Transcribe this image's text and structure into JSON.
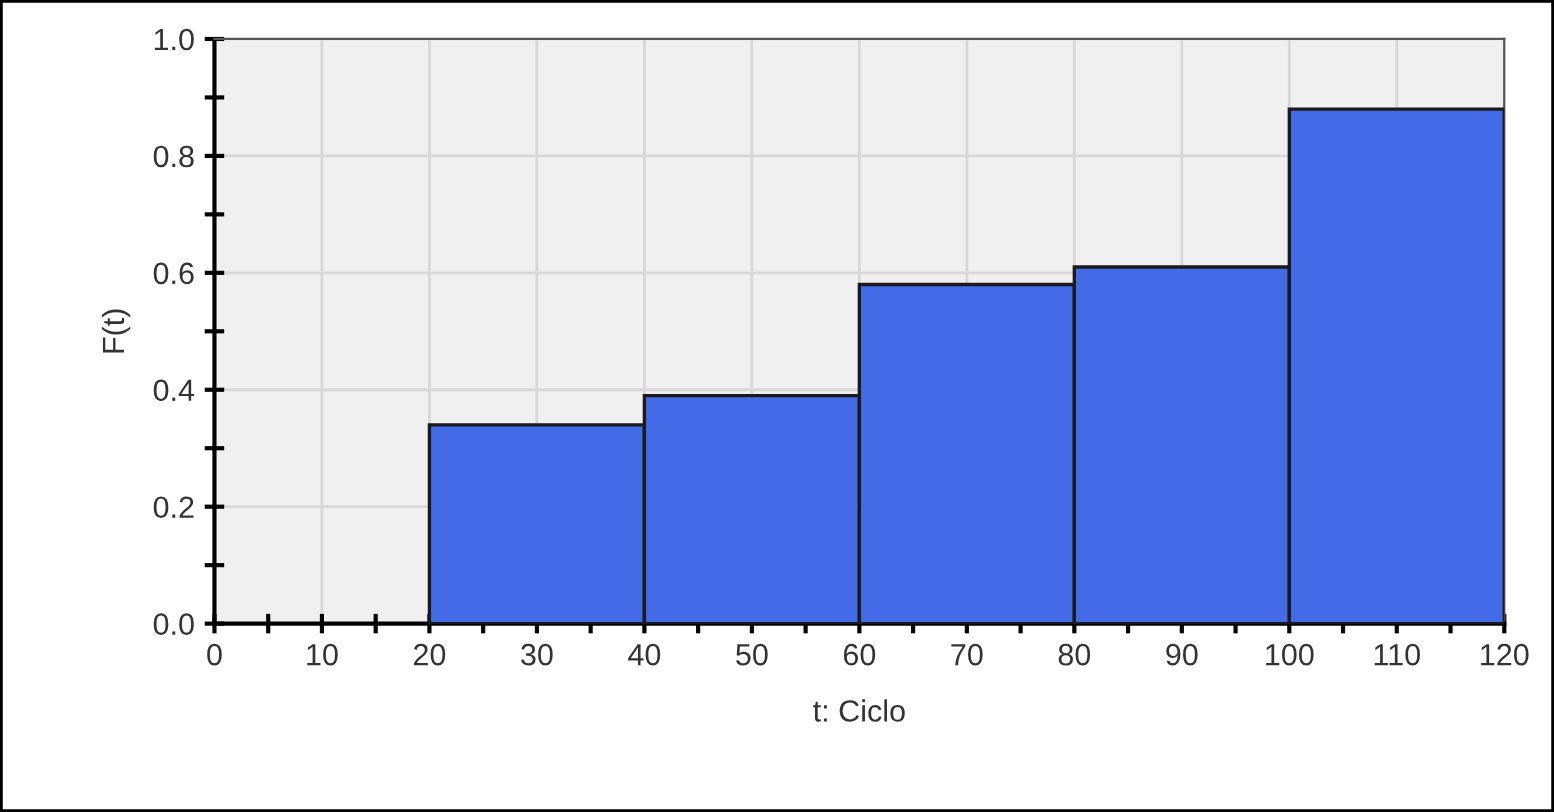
{
  "chart_data": {
    "type": "histogram",
    "xlabel": "t: Ciclo",
    "ylabel": "F(t)",
    "bins": [
      20,
      40,
      60,
      80,
      100,
      120
    ],
    "values": [
      0.34,
      0.39,
      0.58,
      0.61,
      0.88
    ],
    "color": "#436be8",
    "xlim": [
      0,
      120
    ],
    "xticks": [
      0,
      {
        "value": 5,
        "label": null
      },
      10,
      {
        "value": 15,
        "label": null
      },
      20,
      {
        "value": 25,
        "label": null
      },
      30,
      {
        "value": 35,
        "label": null
      },
      40,
      {
        "value": 45,
        "label": null
      },
      50,
      {
        "value": 55,
        "label": null
      },
      60,
      {
        "value": 65,
        "label": null
      },
      70,
      {
        "value": 75,
        "label": null
      },
      80,
      {
        "value": 85,
        "label": null
      },
      90,
      {
        "value": 95,
        "label": null
      },
      100,
      {
        "value": 105,
        "label": null
      },
      110,
      {
        "value": 115,
        "label": null
      },
      120
    ],
    "ylim": [
      0,
      1.0
    ],
    "yticks": [
      {
        "value": 0,
        "label": "0.0"
      },
      {
        "value": 0.1,
        "label": null
      },
      0.2,
      {
        "value": 0.3,
        "label": null
      },
      0.4,
      {
        "value": 0.5,
        "label": null
      },
      0.6,
      {
        "value": 0.7,
        "label": null
      },
      0.8,
      {
        "value": 0.9,
        "label": null
      },
      {
        "value": 1.0,
        "label": "1.0"
      }
    ],
    "grid": true
  }
}
